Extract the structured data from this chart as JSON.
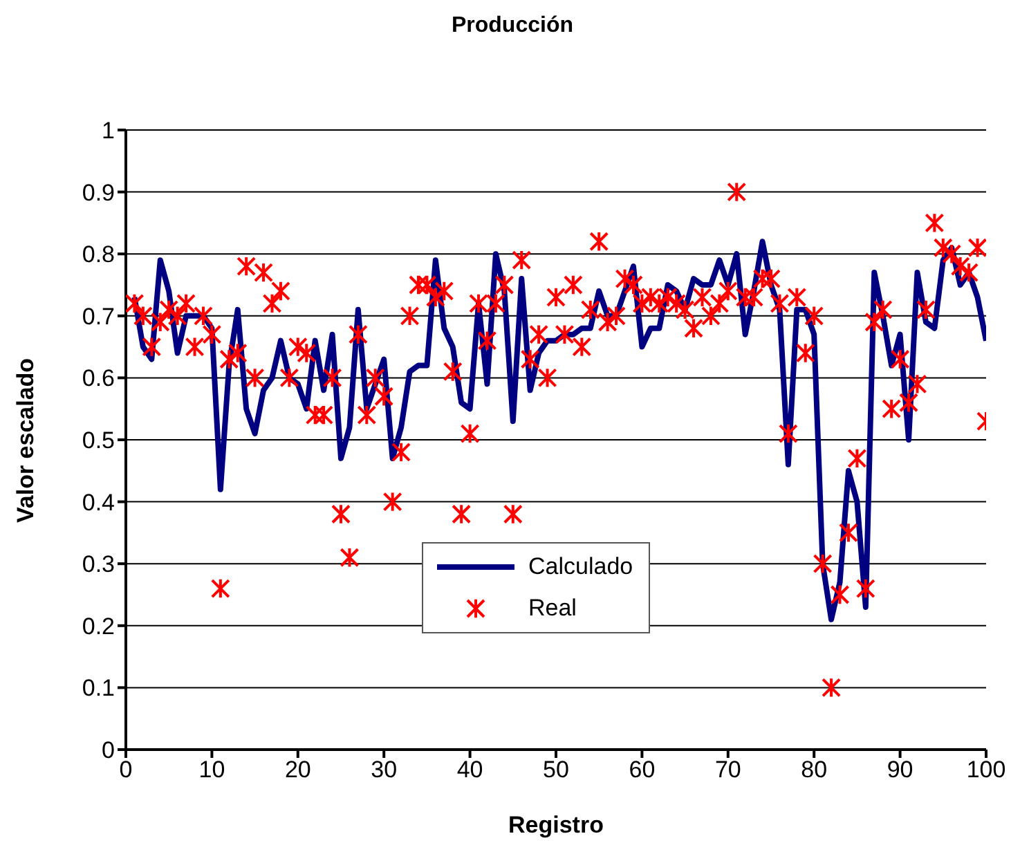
{
  "chart_data": {
    "type": "line",
    "title": "Producción",
    "xlabel": "Registro",
    "ylabel": "Valor escalado",
    "x": [
      1,
      2,
      3,
      4,
      5,
      6,
      7,
      8,
      9,
      10,
      11,
      12,
      13,
      14,
      15,
      16,
      17,
      18,
      19,
      20,
      21,
      22,
      23,
      24,
      25,
      26,
      27,
      28,
      29,
      30,
      31,
      32,
      33,
      34,
      35,
      36,
      37,
      38,
      39,
      40,
      41,
      42,
      43,
      44,
      45,
      46,
      47,
      48,
      49,
      50,
      51,
      52,
      53,
      54,
      55,
      56,
      57,
      58,
      59,
      60,
      61,
      62,
      63,
      64,
      65,
      66,
      67,
      68,
      69,
      70,
      71,
      72,
      73,
      74,
      75,
      76,
      77,
      78,
      79,
      80,
      81,
      82,
      83,
      84,
      85,
      86,
      87,
      88,
      89,
      90,
      91,
      92,
      93,
      94,
      95,
      96,
      97,
      98,
      99,
      100
    ],
    "series": [
      {
        "name": "Calculado",
        "color": "#000080",
        "marker": "none",
        "line_style": "solid",
        "values": [
          0.73,
          0.65,
          0.63,
          0.79,
          0.74,
          0.64,
          0.7,
          0.7,
          0.7,
          0.68,
          0.42,
          0.62,
          0.71,
          0.55,
          0.51,
          0.58,
          0.6,
          0.66,
          0.6,
          0.59,
          0.55,
          0.66,
          0.58,
          0.67,
          0.47,
          0.52,
          0.71,
          0.55,
          0.59,
          0.63,
          0.47,
          0.52,
          0.61,
          0.62,
          0.62,
          0.79,
          0.68,
          0.65,
          0.56,
          0.55,
          0.72,
          0.59,
          0.8,
          0.74,
          0.53,
          0.76,
          0.58,
          0.64,
          0.66,
          0.66,
          0.67,
          0.67,
          0.68,
          0.68,
          0.74,
          0.7,
          0.7,
          0.74,
          0.78,
          0.65,
          0.68,
          0.68,
          0.75,
          0.74,
          0.71,
          0.76,
          0.75,
          0.75,
          0.79,
          0.75,
          0.8,
          0.67,
          0.74,
          0.82,
          0.75,
          0.71,
          0.46,
          0.71,
          0.71,
          0.67,
          0.3,
          0.21,
          0.27,
          0.45,
          0.4,
          0.23,
          0.77,
          0.7,
          0.62,
          0.67,
          0.5,
          0.77,
          0.69,
          0.68,
          0.79,
          0.81,
          0.75,
          0.77,
          0.73,
          0.66
        ]
      },
      {
        "name": "Real",
        "type": "scatter",
        "color": "#ff0000",
        "marker": "cross",
        "values": [
          0.72,
          0.7,
          0.65,
          0.69,
          0.71,
          0.7,
          0.72,
          0.65,
          0.7,
          0.67,
          0.26,
          0.63,
          0.64,
          0.78,
          0.6,
          0.77,
          0.72,
          0.74,
          0.6,
          0.65,
          0.64,
          0.54,
          0.54,
          0.6,
          0.38,
          0.31,
          0.67,
          0.54,
          0.6,
          0.57,
          0.4,
          0.48,
          0.7,
          0.75,
          0.75,
          0.73,
          0.74,
          0.61,
          0.38,
          0.51,
          0.72,
          0.66,
          0.72,
          0.75,
          0.38,
          0.79,
          0.63,
          0.67,
          0.6,
          0.73,
          0.67,
          0.75,
          0.65,
          0.71,
          0.82,
          0.69,
          0.7,
          0.76,
          0.75,
          0.72,
          0.73,
          0.72,
          0.73,
          0.72,
          0.71,
          0.68,
          0.73,
          0.7,
          0.72,
          0.74,
          0.9,
          0.73,
          0.73,
          0.76,
          0.76,
          0.72,
          0.51,
          0.73,
          0.64,
          0.7,
          0.3,
          0.1,
          0.25,
          0.35,
          0.47,
          0.26,
          0.69,
          0.71,
          0.55,
          0.63,
          0.56,
          0.59,
          0.71,
          0.85,
          0.81,
          0.8,
          0.78,
          0.77,
          0.81,
          0.53
        ]
      }
    ],
    "xlim": [
      0,
      100
    ],
    "xticks": [
      0,
      10,
      20,
      30,
      40,
      50,
      60,
      70,
      80,
      90,
      100
    ],
    "ylim": [
      0,
      1
    ],
    "yticks": [
      0,
      0.1,
      0.2,
      0.3,
      0.4,
      0.5,
      0.6,
      0.7,
      0.8,
      0.9,
      1
    ],
    "grid": "y",
    "legend": "bottom"
  }
}
